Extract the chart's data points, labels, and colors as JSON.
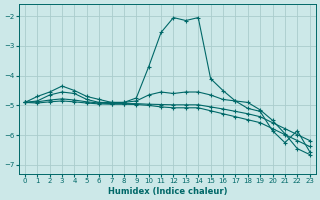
{
  "xlabel": "Humidex (Indice chaleur)",
  "bg_color": "#cce8e8",
  "grid_color": "#aacccc",
  "line_color": "#006868",
  "xlim": [
    -0.5,
    23.5
  ],
  "ylim": [
    -7.3,
    -1.6
  ],
  "yticks": [
    -7,
    -6,
    -5,
    -4,
    -3,
    -2
  ],
  "xticks": [
    0,
    1,
    2,
    3,
    4,
    5,
    6,
    7,
    8,
    9,
    10,
    11,
    12,
    13,
    14,
    15,
    16,
    17,
    18,
    19,
    20,
    21,
    22,
    23
  ],
  "line1_x": [
    0,
    1,
    2,
    3,
    4,
    5,
    6,
    7,
    8,
    9,
    10,
    11,
    12,
    13,
    14,
    15,
    16,
    17,
    18,
    19,
    20,
    21,
    22,
    23
  ],
  "line1_y": [
    -4.9,
    -4.7,
    -4.55,
    -4.35,
    -4.5,
    -4.7,
    -4.8,
    -4.9,
    -4.9,
    -4.75,
    -3.7,
    -2.55,
    -2.05,
    -2.15,
    -2.05,
    -4.1,
    -4.5,
    -4.85,
    -5.1,
    -5.2,
    -5.85,
    -6.25,
    -5.85,
    -6.55
  ],
  "line2_x": [
    0,
    1,
    2,
    3,
    4,
    5,
    6,
    7,
    8,
    9,
    10,
    11,
    12,
    13,
    14,
    15,
    16,
    17,
    18,
    19,
    20,
    21,
    22,
    23
  ],
  "line2_y": [
    -4.9,
    -4.85,
    -4.65,
    -4.55,
    -4.6,
    -4.8,
    -4.9,
    -4.9,
    -4.9,
    -4.85,
    -4.65,
    -4.55,
    -4.6,
    -4.55,
    -4.55,
    -4.65,
    -4.8,
    -4.85,
    -4.9,
    -5.15,
    -5.5,
    -5.95,
    -6.45,
    -6.65
  ],
  "line3_x": [
    0,
    1,
    2,
    3,
    4,
    5,
    6,
    7,
    8,
    9,
    10,
    11,
    12,
    13,
    14,
    15,
    16,
    17,
    18,
    19,
    20,
    21,
    22,
    23
  ],
  "line3_y": [
    -4.9,
    -4.88,
    -4.82,
    -4.78,
    -4.82,
    -4.88,
    -4.92,
    -4.94,
    -4.94,
    -4.94,
    -4.96,
    -4.97,
    -4.98,
    -4.98,
    -4.98,
    -5.05,
    -5.12,
    -5.2,
    -5.28,
    -5.38,
    -5.58,
    -5.78,
    -5.98,
    -6.18
  ],
  "line4_x": [
    0,
    1,
    2,
    3,
    4,
    5,
    6,
    7,
    8,
    9,
    10,
    11,
    12,
    13,
    14,
    15,
    16,
    17,
    18,
    19,
    20,
    21,
    22,
    23
  ],
  "line4_y": [
    -4.9,
    -4.92,
    -4.88,
    -4.85,
    -4.88,
    -4.92,
    -4.95,
    -4.96,
    -4.96,
    -4.97,
    -5.0,
    -5.05,
    -5.08,
    -5.08,
    -5.08,
    -5.18,
    -5.28,
    -5.38,
    -5.48,
    -5.58,
    -5.78,
    -5.98,
    -6.18,
    -6.38
  ]
}
